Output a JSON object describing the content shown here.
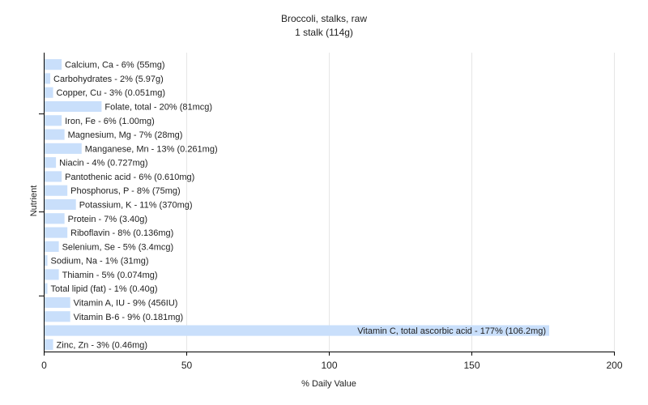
{
  "chart_data": {
    "type": "bar",
    "orientation": "horizontal",
    "title": "Broccoli, stalks, raw",
    "subtitle": "1 stalk (114g)",
    "xlabel": "% Daily Value",
    "ylabel": "Nutrient",
    "xlim": [
      0,
      200
    ],
    "xticks": [
      0,
      50,
      100,
      150,
      200
    ],
    "grid": "vertical",
    "bar_color": "#c9dffb",
    "grid_color": "#e6e6e6",
    "axis_color": "#000000",
    "categories": [
      "Calcium, Ca - 6% (55mg)",
      "Carbohydrates - 2% (5.97g)",
      "Copper, Cu - 3% (0.051mg)",
      "Folate, total - 20% (81mcg)",
      "Iron, Fe - 6% (1.00mg)",
      "Magnesium, Mg - 7% (28mg)",
      "Manganese, Mn - 13% (0.261mg)",
      "Niacin - 4% (0.727mg)",
      "Pantothenic acid - 6% (0.610mg)",
      "Phosphorus, P - 8% (75mg)",
      "Potassium, K - 11% (370mg)",
      "Protein - 7% (3.40g)",
      "Riboflavin - 8% (0.136mg)",
      "Selenium, Se - 5% (3.4mcg)",
      "Sodium, Na - 1% (31mg)",
      "Thiamin - 5% (0.074mg)",
      "Total lipid (fat) - 1% (0.40g)",
      "Vitamin A, IU - 9% (456IU)",
      "Vitamin B-6 - 9% (0.181mg)",
      "Vitamin C, total ascorbic acid - 177% (106.2mg)",
      "Zinc, Zn - 3% (0.46mg)"
    ],
    "values": [
      6,
      2,
      3,
      20,
      6,
      7,
      13,
      4,
      6,
      8,
      11,
      7,
      8,
      5,
      1,
      5,
      1,
      9,
      9,
      177,
      3
    ]
  }
}
